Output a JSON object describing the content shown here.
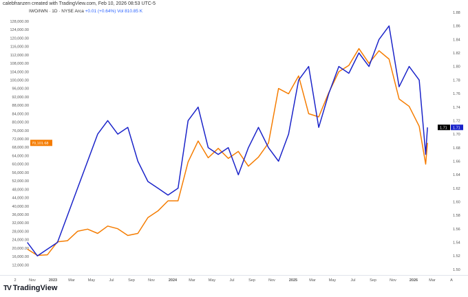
{
  "header": {
    "credit": "calebfranzen created with TradingView.com, Feb 10, 2026 08:53 UTC-5",
    "symbol": "IWO/IWN · 1D · NYSE Arca",
    "change": "+0.01 (+0.64%)",
    "volume": "Vol 810.85 K"
  },
  "footer": {
    "logo_text": "TradingView"
  },
  "chart_data": {
    "type": "line",
    "title": "",
    "left_axis": {
      "range": [
        12000,
        128000
      ],
      "ticks": [
        16000,
        20000,
        24000,
        28000,
        32000,
        36000,
        40000,
        44000,
        48000,
        52000,
        56000,
        60000,
        64000,
        68000,
        72000,
        76000,
        80000,
        84000,
        88000,
        92000,
        96000,
        100000,
        104000,
        108000,
        112000,
        116000,
        120000,
        124000,
        128000
      ],
      "bottom_label": "12,000.00"
    },
    "right_axis": {
      "range": [
        1.5,
        1.88
      ],
      "ticks": [
        1.5,
        1.52,
        1.54,
        1.56,
        1.58,
        1.6,
        1.62,
        1.64,
        1.66,
        1.68,
        1.7,
        1.72,
        1.74,
        1.76,
        1.78,
        1.8,
        1.82,
        1.84,
        1.86,
        1.88
      ]
    },
    "x_tick_labels": [
      "2",
      "Nov",
      "2023",
      "Mar",
      "May",
      "Jul",
      "Sep",
      "Nov",
      "2024",
      "Mar",
      "May",
      "Jul",
      "Sep",
      "Nov",
      "2025",
      "Mar",
      "May",
      "Jul",
      "Sep",
      "Nov",
      "2026",
      "Mar",
      "A"
    ],
    "x_dates": [
      "2022-10",
      "2022-11",
      "2022-12",
      "2023-01",
      "2023-02",
      "2023-03",
      "2023-04",
      "2023-05",
      "2023-06",
      "2023-07",
      "2023-08",
      "2023-09",
      "2023-10",
      "2023-11",
      "2023-12",
      "2024-01",
      "2024-02",
      "2024-03",
      "2024-04",
      "2024-05",
      "2024-06",
      "2024-07",
      "2024-08",
      "2024-09",
      "2024-10",
      "2024-11",
      "2024-12",
      "2025-01",
      "2025-02",
      "2025-03",
      "2025-04",
      "2025-05",
      "2025-06",
      "2025-07",
      "2025-08",
      "2025-09",
      "2025-10",
      "2025-11",
      "2025-12",
      "2026-01",
      "2026-02-05",
      "2026-02-10"
    ],
    "series": [
      {
        "axis": "left",
        "color": "#f57c00",
        "values": [
          19500,
          16500,
          16800,
          23000,
          23500,
          28000,
          29000,
          27000,
          30500,
          29200,
          26000,
          27000,
          34500,
          37700,
          42500,
          42500,
          61000,
          71000,
          63000,
          67500,
          62700,
          66000,
          59000,
          63300,
          70000,
          96000,
          93500,
          102000,
          84000,
          82500,
          94000,
          104000,
          107000,
          115000,
          108000,
          114000,
          110000,
          91000,
          87500,
          78000,
          60000,
          70101.68
        ],
        "last_label": "70,101.68"
      },
      {
        "axis": "right",
        "color": "#1a23c9",
        "values": [
          1.54,
          1.52,
          1.53,
          1.54,
          1.58,
          1.62,
          1.66,
          1.7,
          1.72,
          1.7,
          1.71,
          1.66,
          1.63,
          1.62,
          1.61,
          1.62,
          1.72,
          1.74,
          1.68,
          1.67,
          1.68,
          1.64,
          1.68,
          1.71,
          1.68,
          1.66,
          1.7,
          1.78,
          1.8,
          1.71,
          1.76,
          1.8,
          1.79,
          1.82,
          1.8,
          1.84,
          1.86,
          1.77,
          1.8,
          1.78,
          1.67,
          1.71
        ],
        "last_label": "1.71"
      }
    ],
    "extra_right_label": {
      "text": "1.71",
      "background": "#000000"
    },
    "grid": false
  }
}
